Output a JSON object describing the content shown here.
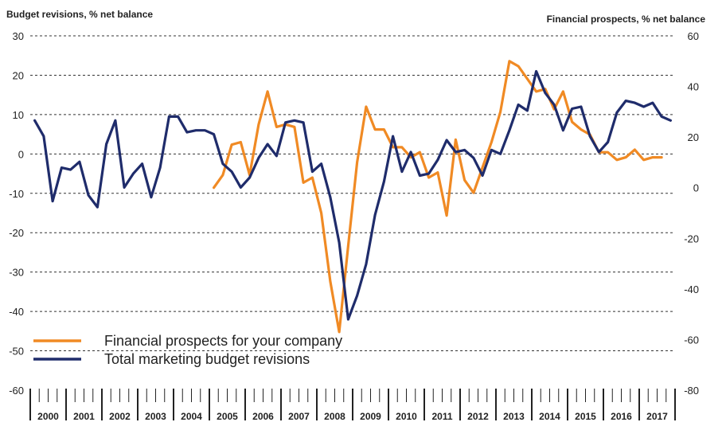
{
  "chart_data": {
    "type": "line",
    "left_axis_title": "Budget revisions, % net balance",
    "right_axis_title": "Financial prospects, % net balance",
    "left_ylim": [
      -60,
      30
    ],
    "left_ticks": [
      "30",
      "20",
      "10",
      "0",
      "-10",
      "-20",
      "-30",
      "-40",
      "-50",
      "-60"
    ],
    "right_ylim": [
      -80,
      60
    ],
    "right_ticks": [
      "60",
      "40",
      "20",
      "0",
      "-20",
      "-40",
      "-60",
      "-80"
    ],
    "years": [
      "2000",
      "2001",
      "2002",
      "2003",
      "2004",
      "2005",
      "2006",
      "2007",
      "2008",
      "2009",
      "2010",
      "2011",
      "2012",
      "2013",
      "2014",
      "2015",
      "2016",
      "2017"
    ],
    "x_start": 2000.0,
    "grid": true,
    "legend_position": "bottom-left",
    "series": [
      {
        "name": "Financial prospects for your company",
        "axis": "right",
        "color": "#F08A24",
        "start": 2005.0,
        "values": [
          0,
          5,
          17,
          18,
          5,
          25,
          38,
          24,
          25,
          24,
          2,
          4,
          -10,
          -37,
          -57,
          -23,
          10,
          32,
          23,
          23,
          16,
          16,
          12,
          14,
          4,
          6,
          -11,
          19,
          3,
          -2,
          8,
          18,
          30,
          50,
          48,
          43,
          38,
          39,
          31,
          38,
          26,
          23,
          21,
          14,
          14,
          11,
          12,
          15,
          11,
          12,
          12
        ]
      },
      {
        "name": "Total marketing budget revisions",
        "axis": "left",
        "color": "#1F2C6B",
        "start": 2000.0,
        "values": [
          8.5,
          4.5,
          -12,
          -3.5,
          -4,
          -2,
          -10.5,
          -13.5,
          2.5,
          8.5,
          -8.5,
          -5,
          -2.5,
          -11,
          -3.5,
          9.5,
          9.5,
          5.5,
          6,
          6,
          5,
          -2.5,
          -4.5,
          -8.5,
          -6,
          -1,
          2.5,
          -0.5,
          8,
          8.5,
          8,
          -4.5,
          -2.5,
          -11,
          -22.5,
          -42,
          -36,
          -28,
          -15.5,
          -7,
          4.5,
          -4.5,
          0.5,
          -5.5,
          -5,
          -1.5,
          3.5,
          0.5,
          1,
          -1,
          -5.5,
          1,
          0,
          6,
          12.5,
          11,
          21,
          15.5,
          12.5,
          6,
          11.5,
          12,
          4.5,
          0.5,
          3,
          10.5,
          13.5,
          13,
          12,
          13,
          9.5,
          8.5
        ]
      }
    ]
  }
}
